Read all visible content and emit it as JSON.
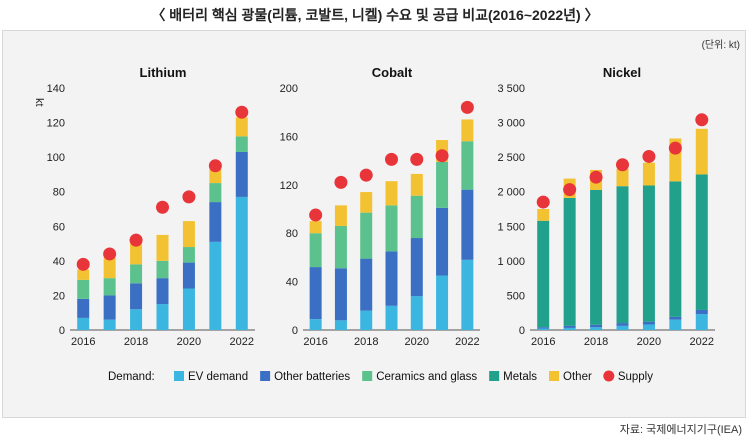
{
  "header": {
    "title": "〈 배터리 핵심 광물(리튬, 코발트, 니켈) 수요 및 공급 비교(2016~2022년) 〉",
    "unit": "(단위: kt)",
    "source": "자료: 국제에너지기구(IEA)"
  },
  "chart_data": [
    {
      "type": "bar",
      "title": "Lithium",
      "ylabel": "kt",
      "xlabel": "",
      "ylim": [
        0,
        140
      ],
      "yticks": [
        0,
        20,
        40,
        60,
        80,
        100,
        120,
        140
      ],
      "ytick_labels": [
        "0",
        "20",
        "40",
        "60",
        "80",
        "100",
        "120",
        "140"
      ],
      "categories": [
        "2016",
        "2017",
        "2018",
        "2019",
        "2020",
        "2021",
        "2022"
      ],
      "xtick_labels": [
        "2016",
        "",
        "2018",
        "",
        "2020",
        "",
        "2022"
      ],
      "stacked": true,
      "series": [
        {
          "name": "EV demand",
          "values": [
            7,
            6,
            12,
            15,
            24,
            51,
            77
          ]
        },
        {
          "name": "Other batteries",
          "values": [
            11,
            14,
            15,
            15,
            15,
            23,
            26
          ]
        },
        {
          "name": "Ceramics and glass",
          "values": [
            11,
            10,
            11,
            10,
            9,
            11,
            9
          ]
        },
        {
          "name": "Other",
          "values": [
            6,
            12,
            13,
            15,
            15,
            8,
            11
          ]
        }
      ],
      "supply": [
        38,
        44,
        52,
        71,
        77,
        95,
        126
      ]
    },
    {
      "type": "bar",
      "title": "Cobalt",
      "xlabel": "",
      "ylabel": "",
      "ylim": [
        0,
        200
      ],
      "yticks": [
        0,
        40,
        80,
        120,
        160,
        200
      ],
      "ytick_labels": [
        "0",
        "40",
        "80",
        "120",
        "160",
        "200"
      ],
      "categories": [
        "2016",
        "2017",
        "2018",
        "2019",
        "2020",
        "2021",
        "2022"
      ],
      "xtick_labels": [
        "2016",
        "",
        "2018",
        "",
        "2020",
        "",
        "2022"
      ],
      "stacked": true,
      "series": [
        {
          "name": "EV demand",
          "values": [
            9,
            8,
            16,
            20,
            28,
            45,
            58
          ]
        },
        {
          "name": "Other batteries",
          "values": [
            43,
            43,
            43,
            45,
            48,
            56,
            58
          ]
        },
        {
          "name": "Ceramics and glass",
          "values": [
            28,
            35,
            38,
            38,
            35,
            38,
            40
          ]
        },
        {
          "name": "Other",
          "values": [
            10,
            17,
            17,
            20,
            18,
            18,
            18
          ]
        }
      ],
      "supply": [
        95,
        122,
        128,
        141,
        141,
        144,
        184
      ]
    },
    {
      "type": "bar",
      "title": "Nickel",
      "xlabel": "",
      "ylabel": "",
      "ylim": [
        0,
        3500
      ],
      "yticks": [
        0,
        500,
        1000,
        1500,
        2000,
        2500,
        3000,
        3500
      ],
      "ytick_labels": [
        "0",
        "500",
        "1 000",
        "1 500",
        "2 000",
        "2 500",
        "3 000",
        "3 500"
      ],
      "categories": [
        "2016",
        "2017",
        "2018",
        "2019",
        "2020",
        "2021",
        "2022"
      ],
      "xtick_labels": [
        "2016",
        "",
        "2018",
        "",
        "2020",
        "",
        "2022"
      ],
      "stacked": true,
      "series": [
        {
          "name": "EV demand",
          "values": [
            20,
            30,
            40,
            60,
            80,
            150,
            230
          ]
        },
        {
          "name": "Other batteries",
          "values": [
            20,
            30,
            35,
            40,
            40,
            40,
            60
          ]
        },
        {
          "name": "Metals",
          "values": [
            1540,
            1850,
            1950,
            1980,
            1970,
            1960,
            1960
          ]
        },
        {
          "name": "Other",
          "values": [
            170,
            280,
            290,
            250,
            330,
            620,
            660
          ]
        }
      ],
      "supply": [
        1850,
        2030,
        2210,
        2390,
        2510,
        2630,
        3040
      ]
    }
  ],
  "legend": {
    "label": "Demand:",
    "items": [
      {
        "name": "EV demand",
        "color": "#3bb6e0",
        "kind": "box"
      },
      {
        "name": "Other batteries",
        "color": "#3a6fc3",
        "kind": "box"
      },
      {
        "name": "Ceramics and glass",
        "color": "#5bc28e",
        "kind": "box"
      },
      {
        "name": "Metals",
        "color": "#21a08c",
        "kind": "box"
      },
      {
        "name": "Other",
        "color": "#f3c233",
        "kind": "box"
      },
      {
        "name": "Supply",
        "color": "#e8353a",
        "kind": "dot"
      }
    ]
  },
  "colors": {
    "EV demand": "#3bb6e0",
    "Other batteries": "#3a6fc3",
    "Ceramics and glass": "#5bc28e",
    "Metals": "#21a08c",
    "Other": "#f3c233",
    "Supply": "#e8353a"
  }
}
